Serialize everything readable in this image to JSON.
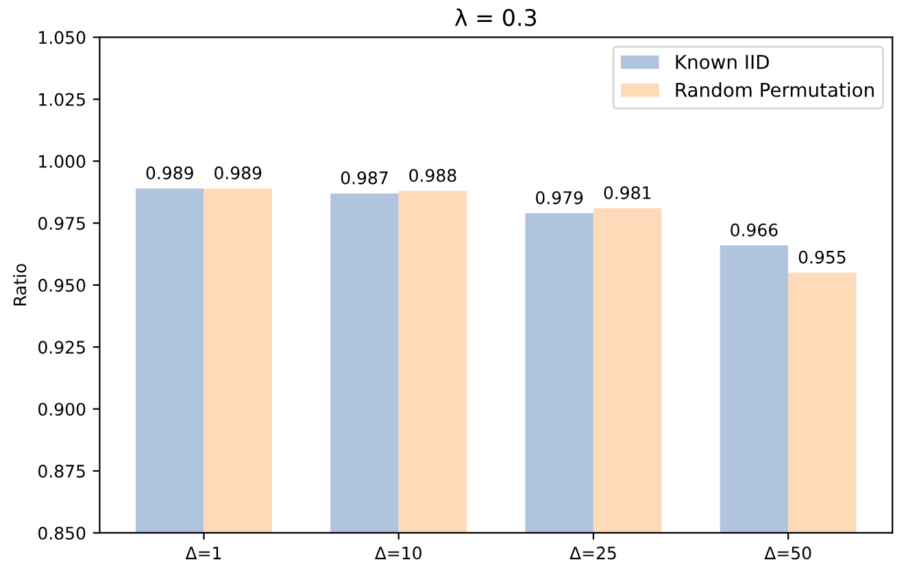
{
  "chart_data": {
    "type": "bar",
    "title": "λ = 0.3",
    "ylabel": "Ratio",
    "categories": [
      "Δ=1",
      "Δ=10",
      "Δ=25",
      "Δ=50"
    ],
    "series": [
      {
        "name": "Known IID",
        "color": "#b0c4de",
        "values": [
          0.989,
          0.987,
          0.979,
          0.966
        ]
      },
      {
        "name": "Random Permutation",
        "color": "#ffdab9",
        "values": [
          0.989,
          0.988,
          0.981,
          0.955
        ]
      }
    ],
    "ylim": [
      0.85,
      1.05
    ],
    "yticks": [
      {
        "value": 0.85,
        "label": "0.850"
      },
      {
        "value": 0.875,
        "label": "0.875"
      },
      {
        "value": 0.9,
        "label": "0.900"
      },
      {
        "value": 0.925,
        "label": "0.925"
      },
      {
        "value": 0.95,
        "label": "0.950"
      },
      {
        "value": 0.975,
        "label": "0.975"
      },
      {
        "value": 1.0,
        "label": "1.000"
      },
      {
        "value": 1.025,
        "label": "1.025"
      },
      {
        "value": 1.05,
        "label": "1.050"
      }
    ],
    "data_labels": true,
    "legend": "top right",
    "grid": false
  }
}
